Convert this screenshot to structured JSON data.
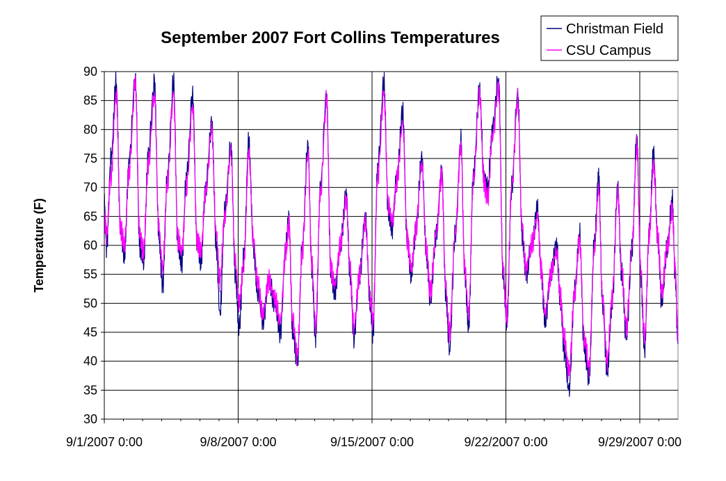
{
  "chart_data": {
    "type": "line",
    "title": "September 2007 Fort Collins Temperatures",
    "xlabel": "",
    "ylabel": "Temperature (F)",
    "x_range_days": [
      0,
      30
    ],
    "ylim": [
      30,
      90
    ],
    "y_ticks": [
      30,
      35,
      40,
      45,
      50,
      55,
      60,
      65,
      70,
      75,
      80,
      85,
      90
    ],
    "x_ticks": [
      {
        "day": 0,
        "label": "9/1/2007 0:00"
      },
      {
        "day": 7,
        "label": "9/8/2007 0:00"
      },
      {
        "day": 14,
        "label": "9/15/2007 0:00"
      },
      {
        "day": 21,
        "label": "9/22/2007 0:00"
      },
      {
        "day": 28,
        "label": "9/29/2007 0:00"
      }
    ],
    "grid": {
      "horizontal": true,
      "vertical": true
    },
    "legend_position": "top-right",
    "series": [
      {
        "name": "Christman Field",
        "color": "#000080",
        "points": [
          [
            0.0,
            67
          ],
          [
            0.12,
            60
          ],
          [
            0.35,
            75
          ],
          [
            0.62,
            88
          ],
          [
            0.85,
            62
          ],
          [
            1.05,
            58
          ],
          [
            1.3,
            75
          ],
          [
            1.62,
            89
          ],
          [
            1.85,
            60
          ],
          [
            2.05,
            57
          ],
          [
            2.3,
            76
          ],
          [
            2.62,
            88
          ],
          [
            2.85,
            62
          ],
          [
            3.05,
            53
          ],
          [
            3.3,
            72
          ],
          [
            3.62,
            88
          ],
          [
            3.85,
            60
          ],
          [
            4.05,
            57
          ],
          [
            4.3,
            72
          ],
          [
            4.62,
            86
          ],
          [
            4.85,
            60
          ],
          [
            5.05,
            57
          ],
          [
            5.3,
            70
          ],
          [
            5.62,
            81
          ],
          [
            5.85,
            60
          ],
          [
            6.05,
            48
          ],
          [
            6.3,
            66
          ],
          [
            6.62,
            77
          ],
          [
            6.85,
            55
          ],
          [
            7.05,
            46
          ],
          [
            7.3,
            58
          ],
          [
            7.55,
            78
          ],
          [
            7.8,
            60
          ],
          [
            8.0,
            52
          ],
          [
            8.3,
            47
          ],
          [
            8.6,
            54
          ],
          [
            8.9,
            50
          ],
          [
            9.2,
            45
          ],
          [
            9.5,
            60
          ],
          [
            9.65,
            65
          ],
          [
            9.85,
            45
          ],
          [
            10.1,
            40
          ],
          [
            10.35,
            60
          ],
          [
            10.65,
            77
          ],
          [
            10.85,
            56
          ],
          [
            11.05,
            44
          ],
          [
            11.3,
            70
          ],
          [
            11.62,
            86
          ],
          [
            11.85,
            55
          ],
          [
            12.05,
            52
          ],
          [
            12.35,
            60
          ],
          [
            12.65,
            69
          ],
          [
            12.85,
            55
          ],
          [
            13.05,
            44
          ],
          [
            13.35,
            55
          ],
          [
            13.65,
            65
          ],
          [
            13.9,
            50
          ],
          [
            14.05,
            45
          ],
          [
            14.3,
            74
          ],
          [
            14.62,
            88
          ],
          [
            14.85,
            66
          ],
          [
            15.05,
            63
          ],
          [
            15.3,
            72
          ],
          [
            15.6,
            83
          ],
          [
            15.85,
            60
          ],
          [
            16.05,
            55
          ],
          [
            16.3,
            63
          ],
          [
            16.6,
            75
          ],
          [
            16.85,
            58
          ],
          [
            17.05,
            50
          ],
          [
            17.35,
            62
          ],
          [
            17.65,
            73
          ],
          [
            17.85,
            52
          ],
          [
            18.05,
            42
          ],
          [
            18.35,
            62
          ],
          [
            18.65,
            78
          ],
          [
            18.85,
            55
          ],
          [
            19.05,
            46
          ],
          [
            19.3,
            72
          ],
          [
            19.62,
            87
          ],
          [
            19.85,
            72
          ],
          [
            20.05,
            70
          ],
          [
            20.3,
            80
          ],
          [
            20.62,
            89
          ],
          [
            20.85,
            55
          ],
          [
            21.05,
            46
          ],
          [
            21.3,
            70
          ],
          [
            21.62,
            86
          ],
          [
            21.85,
            62
          ],
          [
            22.05,
            55
          ],
          [
            22.35,
            60
          ],
          [
            22.65,
            66
          ],
          [
            22.85,
            55
          ],
          [
            23.05,
            47
          ],
          [
            23.35,
            55
          ],
          [
            23.65,
            60
          ],
          [
            23.85,
            50
          ],
          [
            24.05,
            42
          ],
          [
            24.3,
            35
          ],
          [
            24.6,
            52
          ],
          [
            24.85,
            62
          ],
          [
            25.1,
            42
          ],
          [
            25.35,
            37
          ],
          [
            25.62,
            60
          ],
          [
            25.85,
            72
          ],
          [
            26.05,
            50
          ],
          [
            26.3,
            38
          ],
          [
            26.55,
            50
          ],
          [
            26.85,
            70
          ],
          [
            27.05,
            55
          ],
          [
            27.3,
            44
          ],
          [
            27.6,
            60
          ],
          [
            27.85,
            79
          ],
          [
            28.05,
            55
          ],
          [
            28.25,
            42
          ],
          [
            28.5,
            63
          ],
          [
            28.72,
            76
          ],
          [
            28.95,
            60
          ],
          [
            29.15,
            50
          ],
          [
            29.45,
            60
          ],
          [
            29.7,
            68
          ],
          [
            29.85,
            55
          ],
          [
            30.0,
            43
          ]
        ]
      },
      {
        "name": "CSU Campus",
        "color": "#ff00ff",
        "points": [
          [
            0.0,
            65
          ],
          [
            0.12,
            62
          ],
          [
            0.35,
            72
          ],
          [
            0.62,
            86
          ],
          [
            0.85,
            63
          ],
          [
            1.05,
            60
          ],
          [
            1.3,
            73
          ],
          [
            1.62,
            88
          ],
          [
            1.85,
            62
          ],
          [
            2.05,
            59
          ],
          [
            2.3,
            74
          ],
          [
            2.62,
            86
          ],
          [
            2.85,
            63
          ],
          [
            3.05,
            56
          ],
          [
            3.3,
            71
          ],
          [
            3.62,
            86
          ],
          [
            3.85,
            61
          ],
          [
            4.05,
            59
          ],
          [
            4.3,
            70
          ],
          [
            4.62,
            84
          ],
          [
            4.85,
            61
          ],
          [
            5.05,
            59
          ],
          [
            5.3,
            69
          ],
          [
            5.62,
            80
          ],
          [
            5.85,
            62
          ],
          [
            6.05,
            54
          ],
          [
            6.3,
            65
          ],
          [
            6.62,
            76
          ],
          [
            6.85,
            57
          ],
          [
            7.05,
            50
          ],
          [
            7.3,
            57
          ],
          [
            7.55,
            76
          ],
          [
            7.8,
            61
          ],
          [
            8.0,
            54
          ],
          [
            8.3,
            48
          ],
          [
            8.6,
            54
          ],
          [
            8.9,
            51
          ],
          [
            9.2,
            47
          ],
          [
            9.5,
            59
          ],
          [
            9.65,
            64
          ],
          [
            9.85,
            47
          ],
          [
            10.1,
            41
          ],
          [
            10.35,
            59
          ],
          [
            10.65,
            76
          ],
          [
            10.85,
            57
          ],
          [
            11.05,
            46
          ],
          [
            11.3,
            69
          ],
          [
            11.62,
            85
          ],
          [
            11.85,
            56
          ],
          [
            12.05,
            53
          ],
          [
            12.35,
            60
          ],
          [
            12.65,
            68
          ],
          [
            12.85,
            56
          ],
          [
            13.05,
            46
          ],
          [
            13.35,
            55
          ],
          [
            13.65,
            64
          ],
          [
            13.9,
            51
          ],
          [
            14.05,
            47
          ],
          [
            14.3,
            72
          ],
          [
            14.62,
            86
          ],
          [
            14.85,
            67
          ],
          [
            15.05,
            64
          ],
          [
            15.3,
            71
          ],
          [
            15.6,
            81
          ],
          [
            15.85,
            61
          ],
          [
            16.05,
            56
          ],
          [
            16.3,
            63
          ],
          [
            16.6,
            74
          ],
          [
            16.85,
            59
          ],
          [
            17.05,
            52
          ],
          [
            17.35,
            62
          ],
          [
            17.65,
            72
          ],
          [
            17.85,
            53
          ],
          [
            18.05,
            45
          ],
          [
            18.35,
            62
          ],
          [
            18.65,
            77
          ],
          [
            18.85,
            56
          ],
          [
            19.05,
            48
          ],
          [
            19.3,
            71
          ],
          [
            19.62,
            86
          ],
          [
            19.85,
            71
          ],
          [
            20.05,
            68
          ],
          [
            20.3,
            79
          ],
          [
            20.62,
            87
          ],
          [
            20.85,
            56
          ],
          [
            21.05,
            48
          ],
          [
            21.3,
            70
          ],
          [
            21.62,
            85
          ],
          [
            21.85,
            63
          ],
          [
            22.05,
            56
          ],
          [
            22.35,
            60
          ],
          [
            22.65,
            65
          ],
          [
            22.85,
            56
          ],
          [
            23.05,
            48
          ],
          [
            23.35,
            55
          ],
          [
            23.65,
            59
          ],
          [
            23.85,
            51
          ],
          [
            24.05,
            44
          ],
          [
            24.3,
            38
          ],
          [
            24.6,
            52
          ],
          [
            24.85,
            61
          ],
          [
            25.1,
            44
          ],
          [
            25.35,
            39
          ],
          [
            25.62,
            59
          ],
          [
            25.85,
            70
          ],
          [
            26.05,
            51
          ],
          [
            26.3,
            40
          ],
          [
            26.55,
            51
          ],
          [
            26.85,
            69
          ],
          [
            27.05,
            56
          ],
          [
            27.3,
            46
          ],
          [
            27.6,
            60
          ],
          [
            27.85,
            77
          ],
          [
            28.05,
            56
          ],
          [
            28.25,
            44
          ],
          [
            28.5,
            62
          ],
          [
            28.72,
            74
          ],
          [
            28.95,
            61
          ],
          [
            29.15,
            52
          ],
          [
            29.45,
            60
          ],
          [
            29.7,
            66
          ],
          [
            29.85,
            56
          ],
          [
            30.0,
            45
          ]
        ]
      }
    ]
  }
}
